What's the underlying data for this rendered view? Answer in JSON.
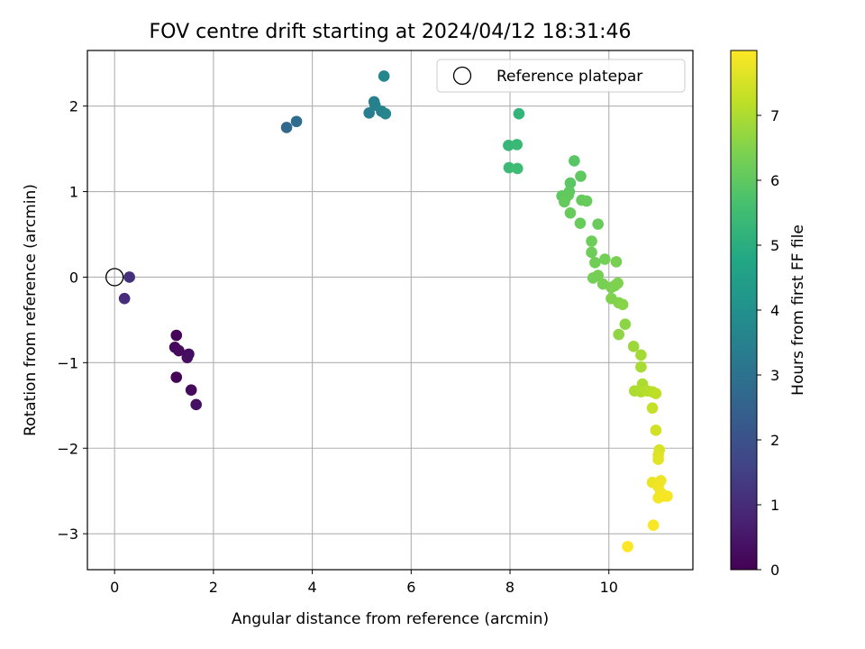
{
  "chart_data": {
    "type": "scatter",
    "title": "FOV centre drift starting at 2024/04/12 18:31:46",
    "xlabel": "Angular distance from reference (arcmin)",
    "ylabel": "Rotation from reference (arcmin)",
    "xlim": [
      -0.55,
      11.7
    ],
    "ylim": [
      -3.42,
      2.65
    ],
    "xticks": [
      0,
      2,
      4,
      6,
      8,
      10
    ],
    "yticks": [
      -3,
      -2,
      -1,
      0,
      1,
      2
    ],
    "grid": true,
    "legend": {
      "placement": "top-right",
      "entries": [
        "Reference platepar"
      ]
    },
    "reference_point": {
      "x": 0,
      "y": 0,
      "label": "Reference platepar"
    },
    "colorbar": {
      "label": "Hours from first FF file",
      "colormap": "viridis",
      "range": [
        0,
        8.0
      ],
      "ticks": [
        0,
        1,
        2,
        3,
        4,
        5,
        6,
        7
      ]
    },
    "series": [
      {
        "points": [
          {
            "x": 1.25,
            "y": -0.68,
            "c": 0.1
          },
          {
            "x": 1.22,
            "y": -0.82,
            "c": 0.15
          },
          {
            "x": 1.3,
            "y": -0.86,
            "c": 0.2
          },
          {
            "x": 1.5,
            "y": -0.9,
            "c": 0.25
          },
          {
            "x": 1.47,
            "y": -0.94,
            "c": 0.3
          },
          {
            "x": 1.25,
            "y": -1.17,
            "c": 0.05
          },
          {
            "x": 1.55,
            "y": -1.32,
            "c": 0.2
          },
          {
            "x": 1.65,
            "y": -1.49,
            "c": 0.35
          },
          {
            "x": 0.2,
            "y": -0.25,
            "c": 1.0
          },
          {
            "x": 0.3,
            "y": 0.0,
            "c": 1.1
          },
          {
            "x": 3.48,
            "y": 1.75,
            "c": 2.7
          },
          {
            "x": 3.68,
            "y": 1.82,
            "c": 2.8
          },
          {
            "x": 5.15,
            "y": 1.92,
            "c": 3.4
          },
          {
            "x": 5.25,
            "y": 2.05,
            "c": 3.45
          },
          {
            "x": 5.27,
            "y": 2.01,
            "c": 3.5
          },
          {
            "x": 5.4,
            "y": 1.94,
            "c": 3.55
          },
          {
            "x": 5.48,
            "y": 1.91,
            "c": 3.6
          },
          {
            "x": 5.45,
            "y": 2.35,
            "c": 3.65
          },
          {
            "x": 8.18,
            "y": 1.91,
            "c": 5.2
          },
          {
            "x": 7.97,
            "y": 1.54,
            "c": 5.3
          },
          {
            "x": 8.14,
            "y": 1.55,
            "c": 5.35
          },
          {
            "x": 7.98,
            "y": 1.28,
            "c": 5.4
          },
          {
            "x": 8.15,
            "y": 1.27,
            "c": 5.45
          },
          {
            "x": 9.3,
            "y": 1.36,
            "c": 5.9
          },
          {
            "x": 9.22,
            "y": 1.1,
            "c": 5.95
          },
          {
            "x": 9.43,
            "y": 1.18,
            "c": 6.0
          },
          {
            "x": 9.2,
            "y": 1.0,
            "c": 6.0
          },
          {
            "x": 9.05,
            "y": 0.95,
            "c": 6.02
          },
          {
            "x": 9.12,
            "y": 0.92,
            "c": 6.05
          },
          {
            "x": 9.18,
            "y": 0.96,
            "c": 6.05
          },
          {
            "x": 9.1,
            "y": 0.88,
            "c": 6.08
          },
          {
            "x": 9.45,
            "y": 0.9,
            "c": 6.1
          },
          {
            "x": 9.55,
            "y": 0.89,
            "c": 6.1
          },
          {
            "x": 9.22,
            "y": 0.75,
            "c": 6.12
          },
          {
            "x": 9.42,
            "y": 0.63,
            "c": 6.15
          },
          {
            "x": 9.78,
            "y": 0.62,
            "c": 6.15
          },
          {
            "x": 9.65,
            "y": 0.42,
            "c": 6.2
          },
          {
            "x": 9.65,
            "y": 0.29,
            "c": 6.22
          },
          {
            "x": 9.72,
            "y": 0.17,
            "c": 6.25
          },
          {
            "x": 9.92,
            "y": 0.21,
            "c": 6.3
          },
          {
            "x": 10.15,
            "y": 0.18,
            "c": 6.35
          },
          {
            "x": 9.68,
            "y": -0.01,
            "c": 6.3
          },
          {
            "x": 9.78,
            "y": 0.02,
            "c": 6.32
          },
          {
            "x": 9.88,
            "y": -0.08,
            "c": 6.35
          },
          {
            "x": 10.05,
            "y": -0.12,
            "c": 6.4
          },
          {
            "x": 10.12,
            "y": -0.1,
            "c": 6.42
          },
          {
            "x": 10.18,
            "y": -0.07,
            "c": 6.45
          },
          {
            "x": 10.05,
            "y": -0.25,
            "c": 6.45
          },
          {
            "x": 10.2,
            "y": -0.3,
            "c": 6.5
          },
          {
            "x": 10.28,
            "y": -0.32,
            "c": 6.55
          },
          {
            "x": 10.33,
            "y": -0.55,
            "c": 6.6
          },
          {
            "x": 10.2,
            "y": -0.67,
            "c": 6.65
          },
          {
            "x": 10.5,
            "y": -0.81,
            "c": 6.8
          },
          {
            "x": 10.65,
            "y": -0.91,
            "c": 6.9
          },
          {
            "x": 10.65,
            "y": -1.05,
            "c": 6.95
          },
          {
            "x": 10.68,
            "y": -1.25,
            "c": 7.0
          },
          {
            "x": 10.52,
            "y": -1.33,
            "c": 7.0
          },
          {
            "x": 10.65,
            "y": -1.34,
            "c": 7.05
          },
          {
            "x": 10.78,
            "y": -1.33,
            "c": 7.1
          },
          {
            "x": 10.88,
            "y": -1.34,
            "c": 7.15
          },
          {
            "x": 10.95,
            "y": -1.36,
            "c": 7.2
          },
          {
            "x": 10.88,
            "y": -1.53,
            "c": 7.3
          },
          {
            "x": 10.95,
            "y": -1.79,
            "c": 7.45
          },
          {
            "x": 11.02,
            "y": -2.02,
            "c": 7.55
          },
          {
            "x": 11.0,
            "y": -2.08,
            "c": 7.6
          },
          {
            "x": 11.0,
            "y": -2.13,
            "c": 7.65
          },
          {
            "x": 10.88,
            "y": -2.4,
            "c": 7.75
          },
          {
            "x": 11.05,
            "y": -2.38,
            "c": 7.8
          },
          {
            "x": 11.0,
            "y": -2.45,
            "c": 7.82
          },
          {
            "x": 11.05,
            "y": -2.52,
            "c": 7.85
          },
          {
            "x": 11.0,
            "y": -2.58,
            "c": 7.88
          },
          {
            "x": 11.1,
            "y": -2.56,
            "c": 7.9
          },
          {
            "x": 11.18,
            "y": -2.56,
            "c": 7.92
          },
          {
            "x": 10.9,
            "y": -2.9,
            "c": 7.95
          },
          {
            "x": 10.38,
            "y": -3.15,
            "c": 7.98
          }
        ]
      }
    ]
  }
}
